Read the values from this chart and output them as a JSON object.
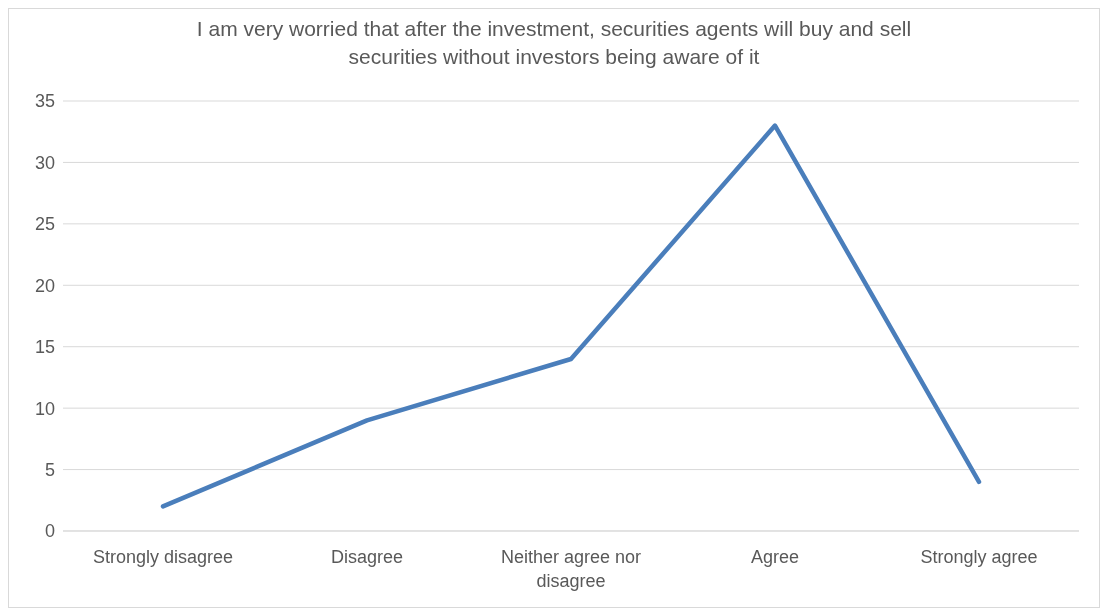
{
  "chart_data": {
    "type": "line",
    "title": "I am very worried that after the investment, securities agents will buy and sell securities without investors being aware of it",
    "categories": [
      "Strongly disagree",
      "Disagree",
      "Neither agree nor disagree",
      "Agree",
      "Strongly agree"
    ],
    "series": [
      {
        "color": "#4a7ebb",
        "values": [
          2,
          9,
          14,
          33,
          4
        ]
      }
    ],
    "ylim": [
      0,
      35
    ],
    "yticks": [
      0,
      5,
      10,
      15,
      20,
      25,
      30,
      35
    ],
    "grid": "y",
    "marker": "none",
    "line_style": "solid"
  }
}
